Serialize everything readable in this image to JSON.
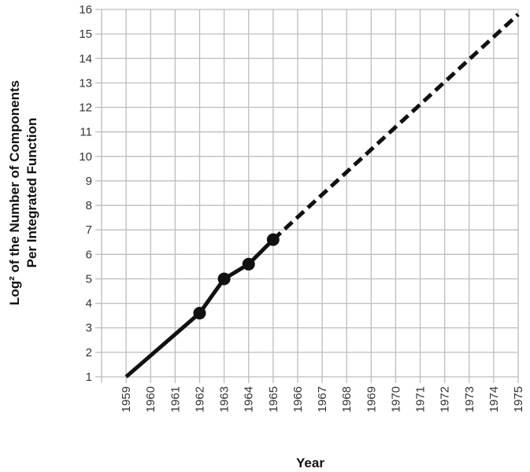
{
  "chart_data": {
    "type": "line",
    "title": "",
    "xlabel": "Year",
    "ylabel_line1": "Log² of the Number of Components",
    "ylabel_line2": "Per Integrated Function",
    "xlim": [
      1958,
      1975
    ],
    "ylim": [
      1,
      16
    ],
    "x_ticks": [
      1959,
      1960,
      1961,
      1962,
      1963,
      1964,
      1965,
      1966,
      1967,
      1968,
      1969,
      1970,
      1971,
      1972,
      1973,
      1974,
      1975
    ],
    "y_ticks": [
      1,
      2,
      3,
      4,
      5,
      6,
      7,
      8,
      9,
      10,
      11,
      12,
      13,
      14,
      15,
      16
    ],
    "grid": true,
    "series": [
      {
        "style": "solid",
        "color": "#111111",
        "points": [
          {
            "x": 1959,
            "y": 1.0
          },
          {
            "x": 1962,
            "y": 3.6
          },
          {
            "x": 1963,
            "y": 5.0
          },
          {
            "x": 1964,
            "y": 5.6
          },
          {
            "x": 1965,
            "y": 6.6
          }
        ],
        "markers": [
          {
            "x": 1962,
            "y": 3.6
          },
          {
            "x": 1963,
            "y": 5.0
          },
          {
            "x": 1964,
            "y": 5.6
          },
          {
            "x": 1965,
            "y": 6.6
          }
        ]
      },
      {
        "style": "dashed",
        "color": "#111111",
        "points": [
          {
            "x": 1965,
            "y": 6.6
          },
          {
            "x": 1975,
            "y": 15.8
          }
        ]
      }
    ]
  }
}
